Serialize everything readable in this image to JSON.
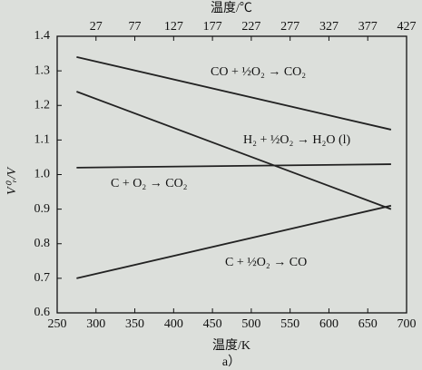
{
  "chart_data": {
    "type": "line",
    "xlabel": "温度/K",
    "x2label": "温度/℃",
    "ylabel": "V⁰ᵣ/V",
    "caption": "a）",
    "xlim": [
      250,
      700
    ],
    "xticks": [
      250,
      300,
      350,
      400,
      450,
      500,
      550,
      600,
      650,
      700
    ],
    "x2lim": [
      -23,
      427
    ],
    "x2ticks": [
      27,
      77,
      127,
      177,
      227,
      277,
      327,
      377,
      427
    ],
    "ylim": [
      0.6,
      1.4
    ],
    "yticks": [
      {
        "value": 0.6,
        "label": "0.6"
      },
      {
        "value": 0.7,
        "label": "0.7"
      },
      {
        "value": 0.8,
        "label": "0.8"
      },
      {
        "value": 0.9,
        "label": "0.9"
      },
      {
        "value": 1.0,
        "label": "1.0"
      },
      {
        "value": 1.1,
        "label": "1.1"
      },
      {
        "value": 1.2,
        "label": "1.2"
      },
      {
        "value": 1.3,
        "label": "1.3"
      },
      {
        "value": 1.4,
        "label": "1.4"
      }
    ],
    "series": [
      {
        "name": "CO + ½O₂ → CO₂",
        "color": "#222222",
        "x": [
          275,
          680
        ],
        "values": [
          1.34,
          1.13
        ]
      },
      {
        "name": "H₂ + ½O₂ → H₂O (l)",
        "color": "#222222",
        "x": [
          275,
          680
        ],
        "values": [
          1.24,
          0.9
        ]
      },
      {
        "name": "C + O₂ → CO₂",
        "color": "#222222",
        "x": [
          275,
          680
        ],
        "values": [
          1.02,
          1.03
        ]
      },
      {
        "name": "C + ½O₂ → CO",
        "color": "#222222",
        "x": [
          275,
          680
        ],
        "values": [
          0.7,
          0.91
        ]
      }
    ]
  }
}
